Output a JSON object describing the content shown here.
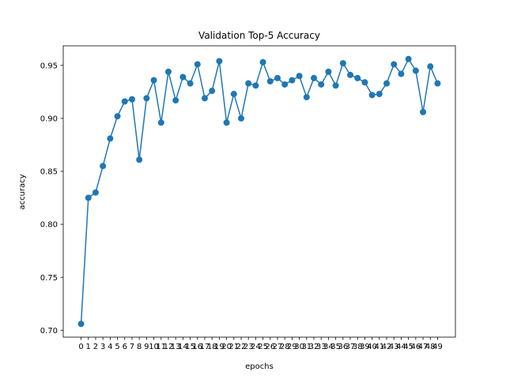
{
  "chart_data": {
    "type": "line",
    "title": "Validation Top-5 Accuracy",
    "xlabel": "epochs",
    "ylabel": "accuracy",
    "x": [
      0,
      1,
      2,
      3,
      4,
      5,
      6,
      7,
      8,
      9,
      10,
      11,
      12,
      13,
      14,
      15,
      16,
      17,
      18,
      19,
      20,
      21,
      22,
      23,
      24,
      25,
      26,
      27,
      28,
      29,
      30,
      31,
      32,
      33,
      34,
      35,
      36,
      37,
      38,
      39,
      40,
      41,
      42,
      43,
      44,
      45,
      46,
      47,
      48,
      49
    ],
    "series": [
      {
        "values": [
          0.706,
          0.825,
          0.83,
          0.855,
          0.881,
          0.902,
          0.916,
          0.918,
          0.861,
          0.919,
          0.936,
          0.896,
          0.944,
          0.917,
          0.939,
          0.933,
          0.951,
          0.919,
          0.926,
          0.954,
          0.896,
          0.923,
          0.9,
          0.933,
          0.931,
          0.953,
          0.935,
          0.938,
          0.932,
          0.936,
          0.94,
          0.92,
          0.938,
          0.932,
          0.944,
          0.931,
          0.952,
          0.941,
          0.938,
          0.934,
          0.922,
          0.923,
          0.933,
          0.951,
          0.942,
          0.956,
          0.945,
          0.906,
          0.949,
          0.933
        ],
        "color": "#1f77b4"
      }
    ],
    "yticks": [
      0.7,
      0.75,
      0.8,
      0.85,
      0.9,
      0.95
    ],
    "ytick_labels": [
      "0.70",
      "0.75",
      "0.80",
      "0.85",
      "0.90",
      "0.95"
    ],
    "xtick_labels": [
      "0",
      "1",
      "2",
      "3",
      "4",
      "5",
      "6",
      "7",
      "8",
      "9",
      "10",
      "11",
      "12",
      "13",
      "14",
      "15",
      "16",
      "17",
      "18",
      "19",
      "20",
      "21",
      "22",
      "23",
      "24",
      "25",
      "26",
      "27",
      "28",
      "29",
      "30",
      "31",
      "32",
      "33",
      "34",
      "35",
      "36",
      "37",
      "38",
      "39",
      "40",
      "41",
      "42",
      "43",
      "44",
      "45",
      "46",
      "47",
      "48",
      "49"
    ],
    "xlim": [
      -2.45,
      51.45
    ],
    "ylim": [
      0.6935,
      0.9685
    ],
    "grid": false,
    "legend": "none"
  }
}
